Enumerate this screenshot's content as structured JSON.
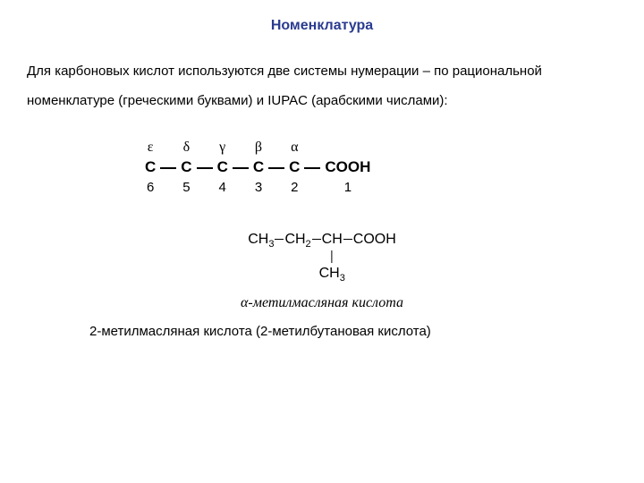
{
  "title": "Номенклатура",
  "intro": "Для карбоновых кислот используются две системы нумерации – по рациональной номенклатуре (греческими буквами) и IUPAC (арабскими числами):",
  "chain": {
    "greek": [
      "ε",
      "δ",
      "γ",
      "β",
      "α",
      ""
    ],
    "atoms": [
      "C",
      "C",
      "C",
      "C",
      "C",
      "COOH"
    ],
    "nums": [
      "6",
      "5",
      "4",
      "3",
      "2",
      "1"
    ]
  },
  "formula2": {
    "groups": [
      "CH",
      "CH",
      "CH",
      "COOH"
    ],
    "subs": [
      "3",
      "2",
      "",
      ""
    ],
    "branch_on_index": 2,
    "branch_group": "CH",
    "branch_sub": "3"
  },
  "name_italic_prefix": "α",
  "name_italic_rest": "-метилмасляная кислота",
  "name_plain": "2-метилмасляная кислота (2-метилбутановая кислота)",
  "colors": {
    "title": "#2a3b8f",
    "text": "#000000",
    "background": "#ffffff"
  },
  "fontsize": {
    "title": 16,
    "body": 15,
    "chain": 16
  }
}
